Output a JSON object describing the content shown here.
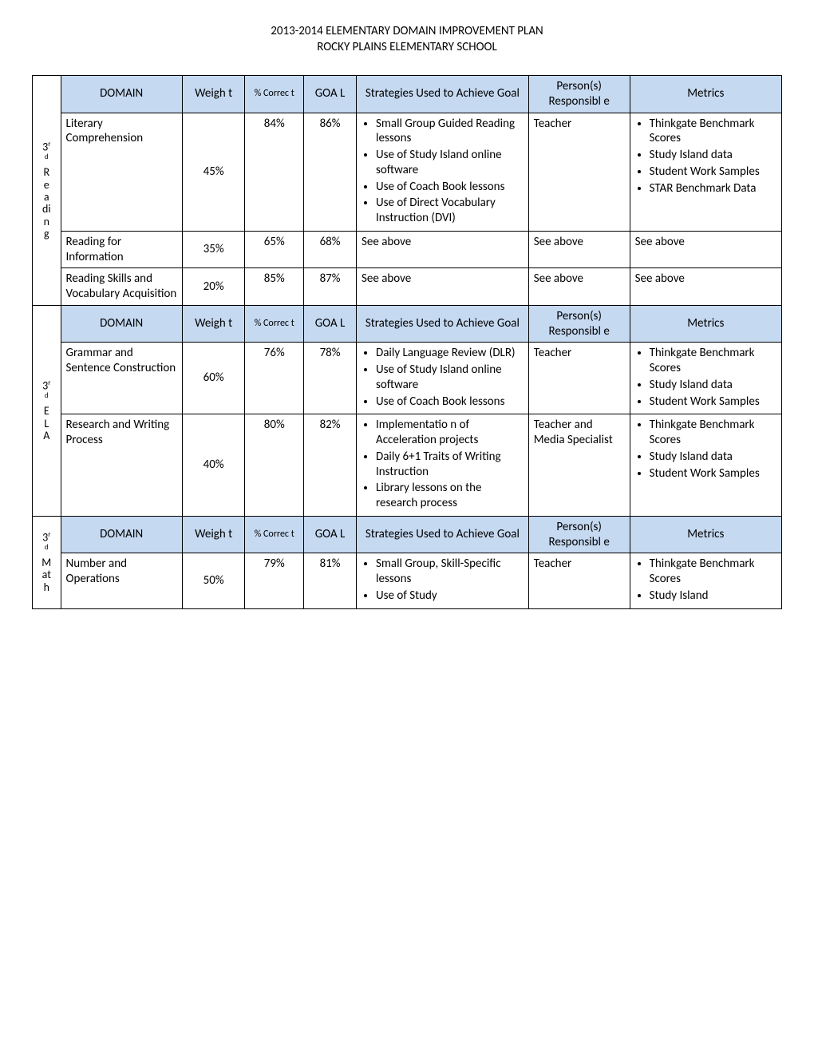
{
  "header": {
    "line1": "2013-2014 ELEMENTARY DOMAIN IMPROVEMENT PLAN",
    "line2": "ROCKY PLAINS ELEMENTARY SCHOOL"
  },
  "columnHeaders": {
    "domain": "DOMAIN",
    "weight": "Weigh t",
    "correct": "% Correc t",
    "goal": "GOA L",
    "strategies": "Strategies Used to Achieve Goal",
    "person": "Person(s) Responsibl e",
    "metrics": "Metrics"
  },
  "sections": [
    {
      "sideLabel": {
        "grade": "3",
        "suffix": "r d",
        "subject": "R e a di n g"
      },
      "rows": [
        {
          "domain": "Literary Comprehension",
          "weight": "45%",
          "correct": "84%",
          "goal": "86%",
          "strategies": [
            "Small Group Guided Reading lessons",
            "Use of Study Island online software",
            "Use of Coach Book lessons",
            "Use of Direct Vocabulary Instruction (DVI)"
          ],
          "person": "Teacher",
          "metrics": [
            "Thinkgate Benchmark Scores",
            "Study Island data",
            "Student Work Samples",
            "STAR Benchmark Data"
          ]
        },
        {
          "domain": "Reading for Information",
          "weight": "35%",
          "correct": "65%",
          "goal": "68%",
          "strategiesText": "See above",
          "personText": "See above",
          "metricsText": "See above"
        },
        {
          "domain": "Reading Skills and Vocabulary Acquisition",
          "weight": "20%",
          "correct": "85%",
          "goal": "87%",
          "strategiesText": "See above",
          "personText": "See above",
          "metricsText": "See above"
        }
      ]
    },
    {
      "sideLabel": {
        "grade": "3",
        "suffix": "r d",
        "subject": "E L A"
      },
      "rows": [
        {
          "domain": "Grammar and Sentence Construction",
          "weight": "60%",
          "correct": "76%",
          "goal": "78%",
          "strategies": [
            "Daily Language Review (DLR)",
            "Use of Study Island online software",
            "Use of Coach Book lessons"
          ],
          "person": "Teacher",
          "metrics": [
            "Thinkgate Benchmark Scores",
            "Study Island data",
            "Student Work Samples"
          ]
        },
        {
          "domain": "Research and Writing Process",
          "weight": "40%",
          "correct": "80%",
          "goal": "82%",
          "strategies": [
            "Implementatio n of Acceleration projects",
            "Daily 6+1 Traits of Writing Instruction",
            "Library lessons on the research process"
          ],
          "person": "Teacher and Media Specialist",
          "metrics": [
            "Thinkgate Benchmark Scores",
            "Study Island data",
            "Student Work Samples"
          ]
        }
      ]
    },
    {
      "sideLabel": {
        "grade": "3",
        "suffix": "r d",
        "subject": "M at h"
      },
      "rows": [
        {
          "domain": "Number and Operations",
          "weight": "50%",
          "correct": "79%",
          "goal": "81%",
          "strategies": [
            "Small Group, Skill-Specific lessons",
            "Use of Study"
          ],
          "person": "Teacher",
          "metrics": [
            "Thinkgate Benchmark Scores",
            "Study Island"
          ]
        }
      ]
    }
  ]
}
